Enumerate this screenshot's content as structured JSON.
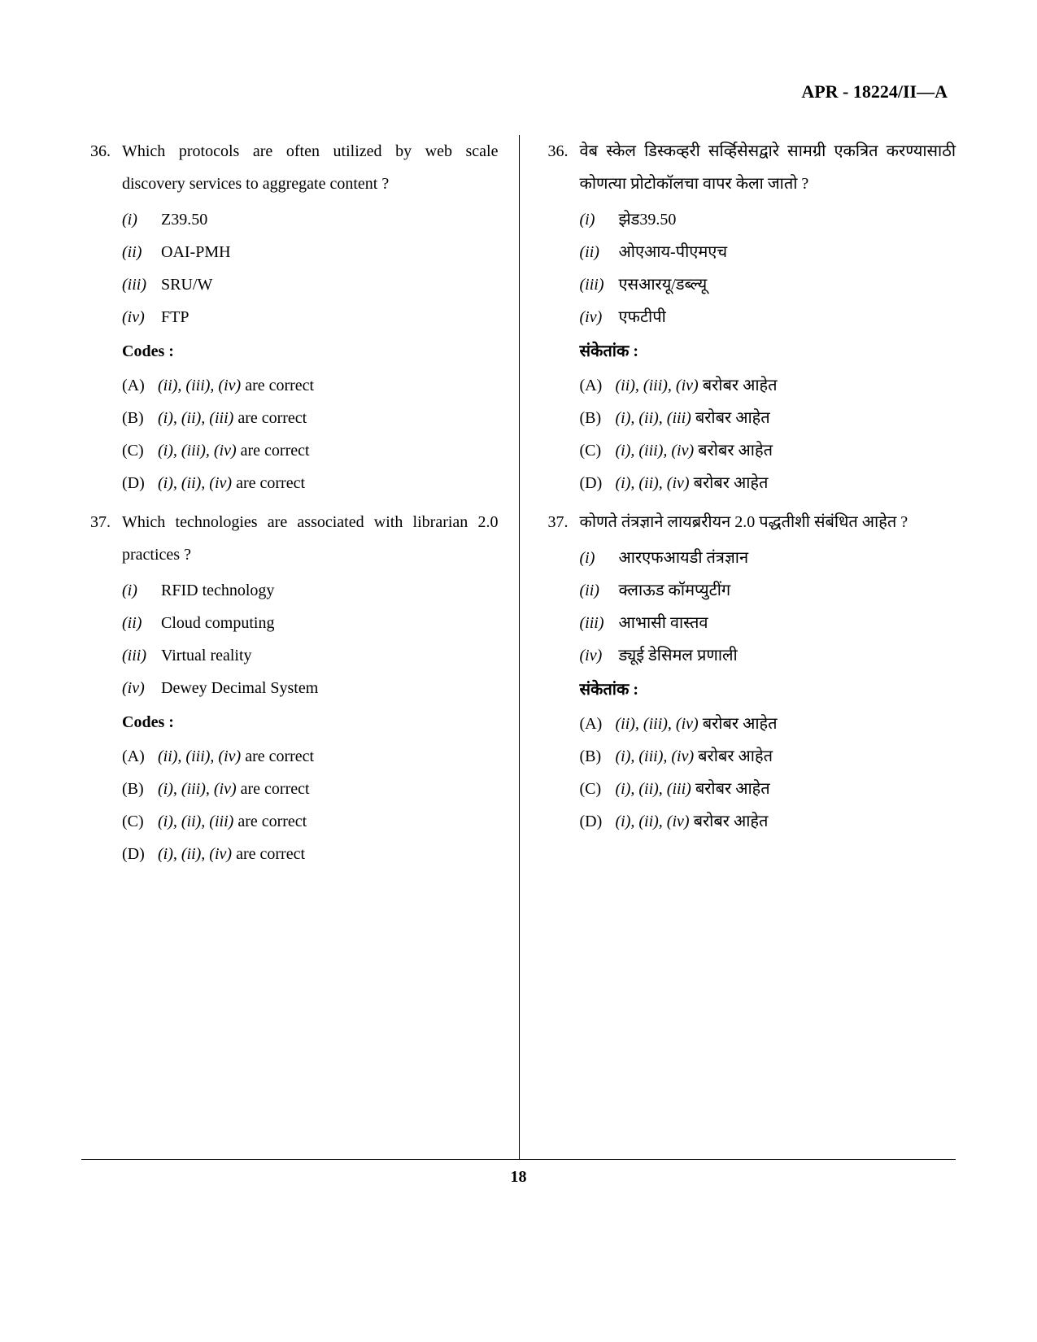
{
  "header": "APR - 18224/II—A",
  "pageNumber": "18",
  "left": {
    "q36": {
      "num": "36.",
      "text": "Which protocols are often utilized by web scale discovery services to aggregate content ?",
      "opts": [
        {
          "label": "(i)",
          "val": "Z39.50"
        },
        {
          "label": "(ii)",
          "val": "OAI-PMH"
        },
        {
          "label": "(iii)",
          "val": "SRU/W"
        },
        {
          "label": "(iv)",
          "val": "FTP"
        }
      ],
      "codesLabel": "Codes :",
      "codes": [
        {
          "label": "(A)",
          "roman": "(ii), (iii), (iv)",
          "suffix": " are correct"
        },
        {
          "label": "(B)",
          "roman": "(i), (ii), (iii)",
          "suffix": " are correct"
        },
        {
          "label": "(C)",
          "roman": "(i), (iii), (iv)",
          "suffix": " are correct"
        },
        {
          "label": "(D)",
          "roman": "(i), (ii), (iv)",
          "suffix": " are correct"
        }
      ]
    },
    "q37": {
      "num": "37.",
      "text": "Which technologies are associated with librarian 2.0 practices ?",
      "opts": [
        {
          "label": "(i)",
          "val": "RFID technology"
        },
        {
          "label": "(ii)",
          "val": "Cloud computing"
        },
        {
          "label": "(iii)",
          "val": "Virtual reality"
        },
        {
          "label": "(iv)",
          "val": "Dewey Decimal System"
        }
      ],
      "codesLabel": "Codes :",
      "codes": [
        {
          "label": "(A)",
          "roman": "(ii), (iii), (iv)",
          "suffix": " are correct"
        },
        {
          "label": "(B)",
          "roman": "(i), (iii), (iv)",
          "suffix": " are correct"
        },
        {
          "label": "(C)",
          "roman": "(i), (ii), (iii)",
          "suffix": " are correct"
        },
        {
          "label": "(D)",
          "roman": "(i), (ii), (iv)",
          "suffix": " are correct"
        }
      ]
    }
  },
  "right": {
    "q36": {
      "num": "36.",
      "text": "वेब स्केल डिस्कव्हरी सर्व्हिसेसद्वारे सामग्री एकत्रित करण्यासाठी कोणत्या प्रोटोकॉलचा वापर केला जातो ?",
      "opts": [
        {
          "label": "(i)",
          "val": "झेड39.50"
        },
        {
          "label": "(ii)",
          "val": "ओएआय-पीएमएच"
        },
        {
          "label": "(iii)",
          "val": "एसआरयू/डब्ल्यू"
        },
        {
          "label": "(iv)",
          "val": "एफटीपी"
        }
      ],
      "codesLabel": "संकेतांक :",
      "codes": [
        {
          "label": "(A)",
          "roman": "(ii), (iii), (iv)",
          "suffix": " बरोबर आहेत"
        },
        {
          "label": "(B)",
          "roman": "(i), (ii), (iii)",
          "suffix": " बरोबर आहेत"
        },
        {
          "label": "(C)",
          "roman": "(i), (iii), (iv)",
          "suffix": " बरोबर आहेत"
        },
        {
          "label": "(D)",
          "roman": "(i), (ii), (iv)",
          "suffix": " बरोबर आहेत"
        }
      ]
    },
    "q37": {
      "num": "37.",
      "text": "कोणते तंत्रज्ञाने लायब्ररीयन 2.0 पद्धतीशी संबंधित आहेत ?",
      "opts": [
        {
          "label": "(i)",
          "val": "आरएफआयडी तंत्रज्ञान"
        },
        {
          "label": "(ii)",
          "val": "क्लाऊड कॉमप्युटींग"
        },
        {
          "label": "(iii)",
          "val": "आभासी वास्तव"
        },
        {
          "label": "(iv)",
          "val": "ड्यूई डेसिमल प्रणाली"
        }
      ],
      "codesLabel": "संकेतांक :",
      "codes": [
        {
          "label": "(A)",
          "roman": "(ii), (iii), (iv)",
          "suffix": " बरोबर आहेत"
        },
        {
          "label": "(B)",
          "roman": "(i), (iii), (iv)",
          "suffix": " बरोबर आहेत"
        },
        {
          "label": "(C)",
          "roman": "(i), (ii), (iii)",
          "suffix": " बरोबर आहेत"
        },
        {
          "label": "(D)",
          "roman": "(i), (ii), (iv)",
          "suffix": " बरोबर आहेत"
        }
      ]
    }
  }
}
